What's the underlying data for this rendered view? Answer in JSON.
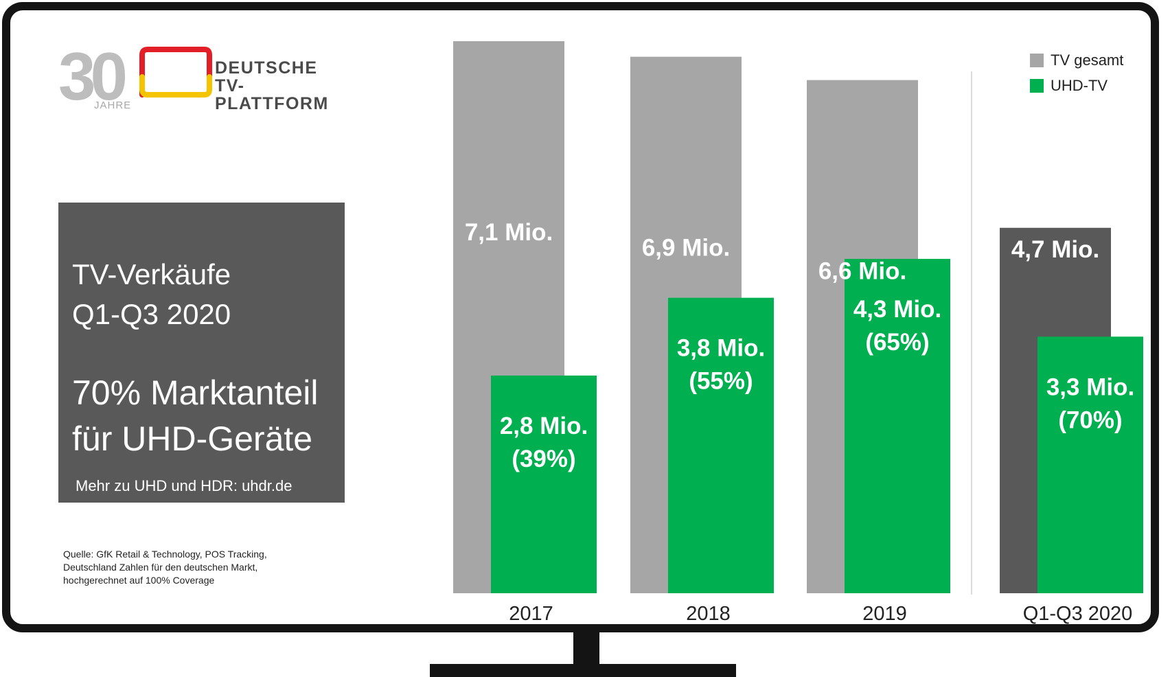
{
  "logo": {
    "number": "30",
    "years": "JAHRE",
    "line1": "DEUTSCHE",
    "line2": "TV-PLATTFORM"
  },
  "infobox": {
    "headline_line1": "TV-Verkäufe",
    "headline_line2": "Q1-Q3 2020",
    "subheadline_line1": "70% Marktanteil",
    "subheadline_line2": "für UHD-Geräte",
    "more": "Mehr zu UHD und HDR: uhdr.de"
  },
  "source": {
    "line1": "Quelle: GfK Retail & Technology, POS Tracking,",
    "line2": "Deutschland Zahlen für den deutschen Markt,",
    "line3": "hochgerechnet auf 100% Coverage"
  },
  "colors": {
    "tv_gesamt": "#a6a6a6",
    "tv_gesamt_highlight": "#595959",
    "uhd_tv": "#00b050",
    "logo_red": "#e21f26",
    "logo_yellow": "#f5c400",
    "frame": "#141414"
  },
  "chart_data": {
    "type": "bar",
    "categories": [
      "2017",
      "2018",
      "2019",
      "Q1-Q3 2020"
    ],
    "series": [
      {
        "name": "TV gesamt",
        "values": [
          7.1,
          6.9,
          6.6,
          4.7
        ],
        "labels": [
          "7,1 Mio.",
          "6,9 Mio.",
          "6,6 Mio.",
          "4,7 Mio."
        ]
      },
      {
        "name": "UHD-TV",
        "values": [
          2.8,
          3.8,
          4.3,
          3.3
        ],
        "labels": [
          "2,8 Mio.",
          "3,8 Mio.",
          "4,3 Mio.",
          "3,3 Mio."
        ],
        "shares": [
          "(39%)",
          "(55%)",
          "(65%)",
          "(70%)"
        ]
      }
    ],
    "legend": [
      "TV gesamt",
      "UHD-TV"
    ],
    "legend_position": "top-right",
    "ylim": [
      0,
      7.1
    ],
    "grid": false,
    "separator_before_last": true
  }
}
